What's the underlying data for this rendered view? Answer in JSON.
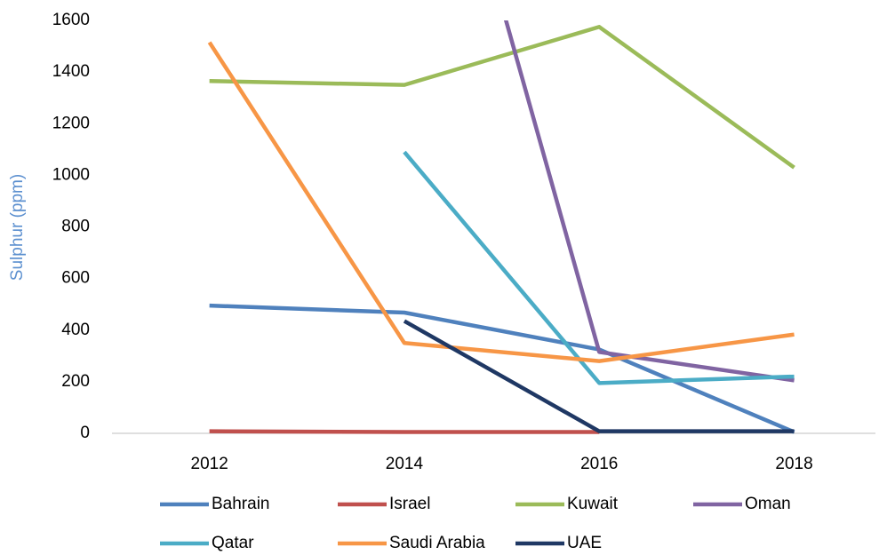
{
  "chart_data": {
    "type": "line",
    "y_label": "Sulphur (ppm)",
    "categories": [
      "2012",
      "2014",
      "2016",
      "2018"
    ],
    "series": [
      {
        "name": "Bahrain",
        "color": "#4f81bd",
        "values": [
          495,
          468,
          325,
          5
        ]
      },
      {
        "name": "Israel",
        "color": "#c0504d",
        "values": [
          8,
          5,
          5,
          null
        ]
      },
      {
        "name": "Kuwait",
        "color": "#9bbb59",
        "values": [
          1365,
          1350,
          1575,
          1030
        ]
      },
      {
        "name": "Oman",
        "color": "#8064a2",
        "values": [
          null,
          3000,
          315,
          205
        ]
      },
      {
        "name": "Qatar",
        "color": "#4bacc6",
        "values": [
          null,
          1090,
          195,
          220
        ]
      },
      {
        "name": "Saudi Arabia",
        "color": "#f79646",
        "values": [
          1515,
          350,
          280,
          383
        ]
      },
      {
        "name": "UAE",
        "color": "#1f3864",
        "values": [
          null,
          435,
          8,
          8
        ]
      }
    ],
    "ylim": [
      0,
      1600
    ],
    "yticks": [
      0,
      200,
      400,
      600,
      800,
      1000,
      1200,
      1400,
      1600
    ],
    "grid": false,
    "legend": "bottom"
  }
}
